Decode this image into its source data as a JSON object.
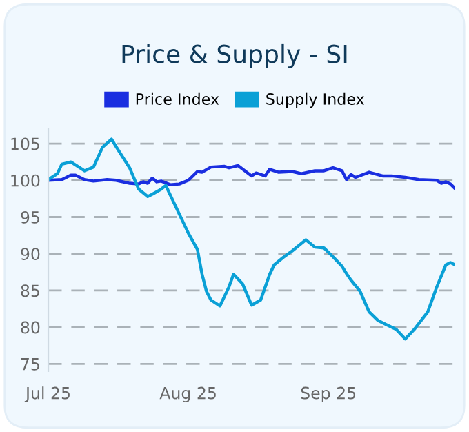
{
  "chart_data": {
    "type": "line",
    "title": "Price & Supply - SI",
    "series": [
      {
        "name": "Price Index",
        "color": "#1a2ee0",
        "x": [
          "2025-07-01",
          "2025-07-04",
          "2025-07-06",
          "2025-07-07",
          "2025-07-09",
          "2025-07-11",
          "2025-07-14",
          "2025-07-16",
          "2025-07-19",
          "2025-07-21",
          "2025-07-22",
          "2025-07-23",
          "2025-07-24",
          "2025-07-25",
          "2025-07-26",
          "2025-07-28",
          "2025-07-30",
          "2025-08-01",
          "2025-08-03",
          "2025-08-04",
          "2025-08-06",
          "2025-08-09",
          "2025-08-10",
          "2025-08-12",
          "2025-08-15",
          "2025-08-16",
          "2025-08-18",
          "2025-08-19",
          "2025-08-21",
          "2025-08-24",
          "2025-08-26",
          "2025-08-29",
          "2025-08-31",
          "2025-09-02",
          "2025-09-04",
          "2025-09-05",
          "2025-09-06",
          "2025-09-07",
          "2025-09-10",
          "2025-09-13",
          "2025-09-15",
          "2025-09-18",
          "2025-09-21",
          "2025-09-25",
          "2025-09-26",
          "2025-09-27",
          "2025-09-28",
          "2025-09-29"
        ],
        "values": [
          100,
          100.1,
          100.7,
          100.7,
          100.1,
          99.9,
          100.1,
          100,
          99.6,
          99.5,
          99.8,
          99.6,
          100.3,
          99.8,
          99.9,
          99.4,
          99.5,
          100,
          101.2,
          101.1,
          101.8,
          101.9,
          101.7,
          102,
          100.6,
          101,
          100.6,
          101.5,
          101.1,
          101.2,
          100.9,
          101.3,
          101.3,
          101.7,
          101.3,
          100.1,
          100.8,
          100.4,
          101.1,
          100.6,
          100.6,
          100.4,
          100.1,
          100,
          99.6,
          99.8,
          99.5,
          98.9
        ]
      },
      {
        "name": "Supply Index",
        "color": "#0aa0d6",
        "x": [
          "2025-07-01",
          "2025-07-03",
          "2025-07-04",
          "2025-07-06",
          "2025-07-07",
          "2025-07-09",
          "2025-07-11",
          "2025-07-13",
          "2025-07-15",
          "2025-07-16",
          "2025-07-19",
          "2025-07-21",
          "2025-07-23",
          "2025-07-24",
          "2025-07-26",
          "2025-07-27",
          "2025-07-29",
          "2025-08-01",
          "2025-08-03",
          "2025-08-04",
          "2025-08-05",
          "2025-08-06",
          "2025-08-08",
          "2025-08-10",
          "2025-08-11",
          "2025-08-13",
          "2025-08-15",
          "2025-08-17",
          "2025-08-19",
          "2025-08-20",
          "2025-08-22",
          "2025-08-24",
          "2025-08-27",
          "2025-08-29",
          "2025-08-31",
          "2025-09-02",
          "2025-09-04",
          "2025-09-05",
          "2025-09-06",
          "2025-09-08",
          "2025-09-10",
          "2025-09-12",
          "2025-09-14",
          "2025-09-16",
          "2025-09-18",
          "2025-09-20",
          "2025-09-23",
          "2025-09-25",
          "2025-09-27",
          "2025-09-28",
          "2025-09-29"
        ],
        "values": [
          100.1,
          100.9,
          102.2,
          102.5,
          102.1,
          101.3,
          101.8,
          104.5,
          105.6,
          104.6,
          101.7,
          98.8,
          97.8,
          98.1,
          98.8,
          99.3,
          96.7,
          92.8,
          90.6,
          87.3,
          84.9,
          83.7,
          82.9,
          85.5,
          87.2,
          85.9,
          83,
          83.7,
          87.2,
          88.5,
          89.5,
          90.4,
          91.9,
          90.9,
          90.8,
          89.6,
          88.3,
          87.3,
          86.4,
          84.9,
          82.1,
          80.9,
          80.3,
          79.7,
          78.4,
          79.7,
          82.1,
          85.5,
          88.5,
          88.8,
          88.5
        ]
      }
    ],
    "xlim": [
      "2025-07-01",
      "2025-09-29"
    ],
    "xticks": [
      {
        "value": "2025-07-01",
        "label": "Jul 25"
      },
      {
        "value": "2025-08-01",
        "label": "Aug 25"
      },
      {
        "value": "2025-09-01",
        "label": "Sep 25"
      }
    ],
    "ylim": [
      74,
      107
    ],
    "yticks": [
      75,
      80,
      85,
      90,
      95,
      100,
      105
    ],
    "grid": "y",
    "legend": "top",
    "marker": "none",
    "line_style": "solid"
  }
}
